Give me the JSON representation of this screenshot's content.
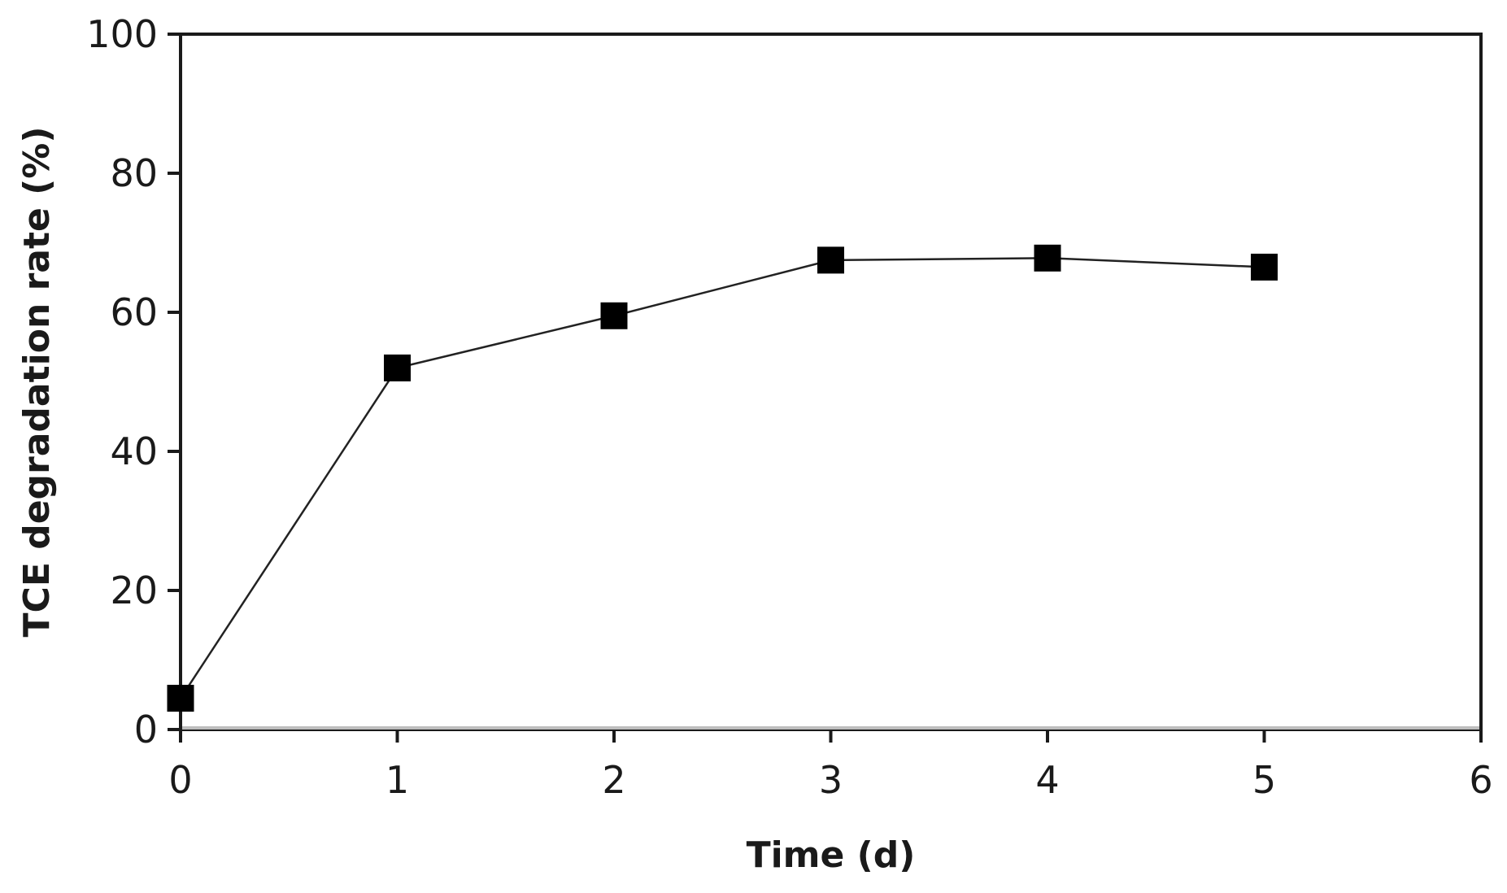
{
  "chart_data": {
    "type": "line",
    "title": "",
    "xlabel": "Time (d)",
    "ylabel": "TCE degradation rate (%)",
    "xlim": [
      0,
      6
    ],
    "ylim": [
      0,
      100
    ],
    "xticks": [
      0,
      1,
      2,
      3,
      4,
      5,
      6
    ],
    "yticks": [
      0,
      20,
      40,
      60,
      80,
      100
    ],
    "grid": false,
    "legend": "none",
    "series": [
      {
        "x": [
          0,
          1,
          2,
          3,
          4,
          5
        ],
        "values": [
          4.5,
          52,
          59.5,
          67.5,
          67.8,
          66.5
        ],
        "marker": "square",
        "color": "#000000"
      }
    ]
  }
}
